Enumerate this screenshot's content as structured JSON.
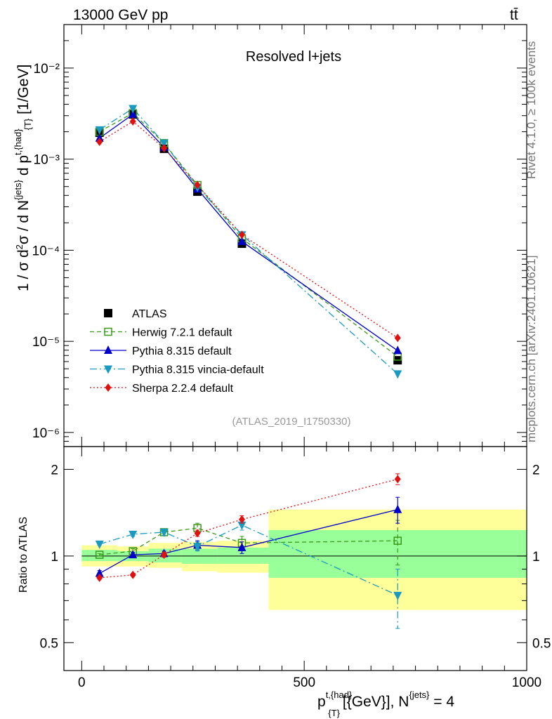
{
  "header": {
    "left": "13000 GeV pp",
    "right": "tt̄"
  },
  "side_labels": {
    "rivet": "Rivet 4.1.0, ≥ 100k events",
    "mcplots": "mcplots.cern.ch [arXiv:2401.10621]"
  },
  "chart_data": [
    {
      "type": "scatter",
      "panel": "main",
      "title": "Resolved l+jets",
      "watermark": "(ATLAS_2019_I1750330)",
      "ylabel": "1 / σ d²σ / d N^{jets} d p^{t,{had}}_{T} [1/GeV]",
      "yscale": "log",
      "ylim": [
        7e-07,
        0.03
      ],
      "xlim": [
        -40,
        1000
      ],
      "y_ticks": [
        {
          "value": 0.01,
          "label": "10⁻²"
        },
        {
          "value": 0.001,
          "label": "10⁻³"
        },
        {
          "value": 0.0001,
          "label": "10⁻⁴"
        },
        {
          "value": 1e-05,
          "label": "10⁻⁵"
        },
        {
          "value": 1e-06,
          "label": "10⁻⁶"
        }
      ],
      "legend_position": "center-left",
      "series": [
        {
          "name": "ATLAS",
          "color": "#000000",
          "marker": "square",
          "line": "none",
          "x": [
            40,
            115,
            185,
            260,
            360,
            710
          ],
          "y": [
            0.00195,
            0.0031,
            0.0013,
            0.00044,
            0.000118,
            6.2e-06
          ]
        },
        {
          "name": "Herwig 7.2.1 default",
          "color": "#3a9a1a",
          "marker": "open-square",
          "line": "dashed",
          "x": [
            40,
            115,
            185,
            260,
            360,
            710
          ],
          "y": [
            0.002,
            0.0032,
            0.0015,
            0.00052,
            0.000135,
            6.8e-06
          ]
        },
        {
          "name": "Pythia 8.315 default",
          "color": "#0000cc",
          "marker": "triangle-up",
          "line": "solid",
          "x": [
            40,
            115,
            185,
            260,
            360,
            710
          ],
          "y": [
            0.0017,
            0.0031,
            0.00135,
            0.00047,
            0.000125,
            7.9e-06
          ]
        },
        {
          "name": "Pythia 8.315 vincia-default",
          "color": "#1a9ac0",
          "marker": "triangle-down",
          "line": "dashdot",
          "x": [
            40,
            115,
            185,
            260,
            360,
            710
          ],
          "y": [
            0.0021,
            0.0036,
            0.0015,
            0.00049,
            0.000148,
            4.4e-06
          ]
        },
        {
          "name": "Sherpa 2.2.4 default",
          "color": "#e01010",
          "marker": "diamond",
          "line": "dotted",
          "x": [
            40,
            115,
            185,
            260,
            360,
            710
          ],
          "y": [
            0.00155,
            0.0026,
            0.00132,
            0.00052,
            0.000148,
            1.09e-05
          ]
        }
      ]
    },
    {
      "type": "scatter",
      "panel": "ratio",
      "ylabel": "Ratio to ATLAS",
      "yscale": "log",
      "ylim": [
        0.4,
        2.4
      ],
      "xlim": [
        -40,
        1000
      ],
      "xlabel": "p^{t,{had}}_{T} [{GeV}], N^{jets} = 4",
      "x_ticks": [
        {
          "value": 0,
          "label": "0"
        },
        {
          "value": 500,
          "label": "500"
        },
        {
          "value": 1000,
          "label": "1000"
        }
      ],
      "y_ticks": [
        {
          "value": 2,
          "label": "2"
        },
        {
          "value": 1,
          "label": "1"
        },
        {
          "value": 0.5,
          "label": "0.5"
        }
      ],
      "uncertainty_bands": [
        {
          "x_lo": 0,
          "x_hi": 80,
          "inner": [
            0.96,
            1.05
          ],
          "outer": [
            0.92,
            1.09
          ]
        },
        {
          "x_lo": 80,
          "x_hi": 150,
          "inner": [
            0.96,
            1.04
          ],
          "outer": [
            0.92,
            1.08
          ]
        },
        {
          "x_lo": 150,
          "x_hi": 225,
          "inner": [
            0.95,
            1.06
          ],
          "outer": [
            0.91,
            1.11
          ]
        },
        {
          "x_lo": 225,
          "x_hi": 305,
          "inner": [
            0.94,
            1.06
          ],
          "outer": [
            0.885,
            1.12
          ]
        },
        {
          "x_lo": 305,
          "x_hi": 420,
          "inner": [
            0.94,
            1.07
          ],
          "outer": [
            0.875,
            1.13
          ]
        },
        {
          "x_lo": 420,
          "x_hi": 1000,
          "inner": [
            0.84,
            1.23
          ],
          "outer": [
            0.65,
            1.45
          ]
        }
      ],
      "series": [
        {
          "name": "Herwig 7.2.1 default",
          "color": "#3a9a1a",
          "x": [
            40,
            115,
            185,
            260,
            360,
            710
          ],
          "y": [
            1.01,
            1.04,
            1.21,
            1.25,
            1.11,
            1.13
          ],
          "err": [
            0.01,
            0.02,
            0.03,
            0.05,
            0.06,
            0.2
          ]
        },
        {
          "name": "Pythia 8.315 default",
          "color": "#0000cc",
          "x": [
            40,
            115,
            185,
            260,
            360,
            710
          ],
          "y": [
            0.87,
            1.01,
            1.02,
            1.09,
            1.07,
            1.45
          ],
          "err": [
            0.02,
            0.02,
            0.02,
            0.04,
            0.05,
            0.15
          ]
        },
        {
          "name": "Pythia 8.315 vincia-default",
          "color": "#1a9ac0",
          "x": [
            40,
            115,
            185,
            260,
            360,
            710
          ],
          "y": [
            1.1,
            1.19,
            1.21,
            1.08,
            1.28,
            0.73
          ],
          "err": [
            0.01,
            0.02,
            0.03,
            0.04,
            0.05,
            0.17
          ]
        },
        {
          "name": "Sherpa 2.2.4 default",
          "color": "#e01010",
          "x": [
            40,
            115,
            185,
            260,
            360,
            710
          ],
          "y": [
            0.84,
            0.86,
            1.01,
            1.2,
            1.34,
            1.85
          ],
          "err": [
            0.01,
            0.01,
            0.02,
            0.03,
            0.04,
            0.08
          ]
        }
      ]
    }
  ]
}
